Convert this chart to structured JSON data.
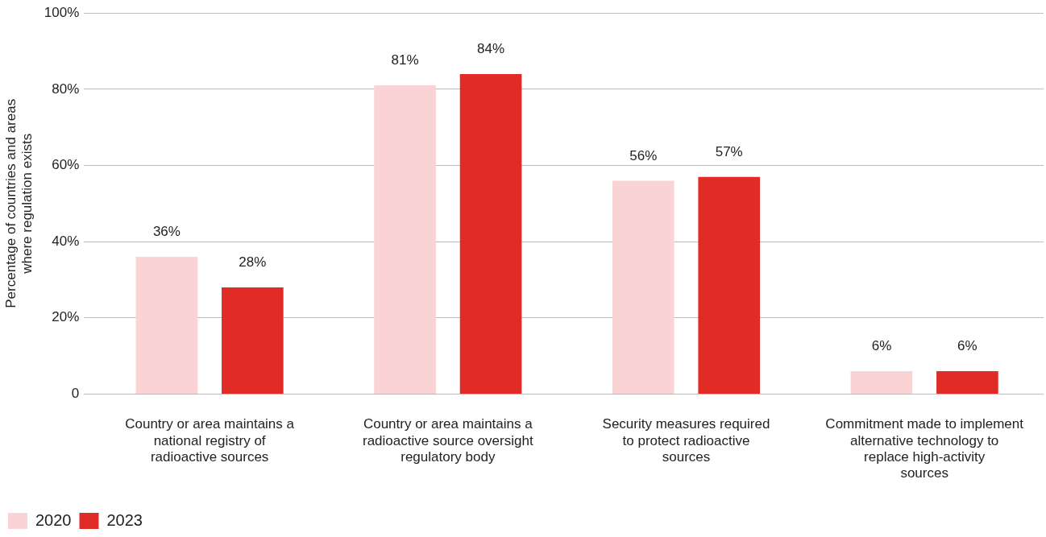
{
  "chart_data": {
    "type": "bar",
    "ylabel": "Percentage of countries and areas where regulation exists",
    "categories": [
      "Country or area maintains a national registry of radioactive sources",
      "Country or area maintains a radioactive source oversight regulatory body",
      "Security measures required to protect radioactive sources",
      "Commitment made to implement alternative technology to replace high-activity sources"
    ],
    "series": [
      {
        "name": "2020",
        "color": "#fad4d4",
        "values": [
          36,
          81,
          56,
          6
        ],
        "value_labels": [
          "36%",
          "81%",
          "56%",
          "6%"
        ]
      },
      {
        "name": "2023",
        "color": "#e02b27",
        "values": [
          28,
          84,
          57,
          6
        ],
        "value_labels": [
          "28%",
          "84%",
          "57%",
          "6%"
        ]
      }
    ],
    "ylim": [
      0,
      100
    ],
    "yticks": [
      0,
      {
        "value": 20,
        "label": "20%"
      },
      {
        "value": 40,
        "label": "40%"
      },
      {
        "value": 60,
        "label": "60%"
      },
      {
        "value": 80,
        "label": "80%"
      },
      {
        "value": 100,
        "label": "100%"
      }
    ],
    "grid": "y",
    "legend": "bottom left"
  }
}
